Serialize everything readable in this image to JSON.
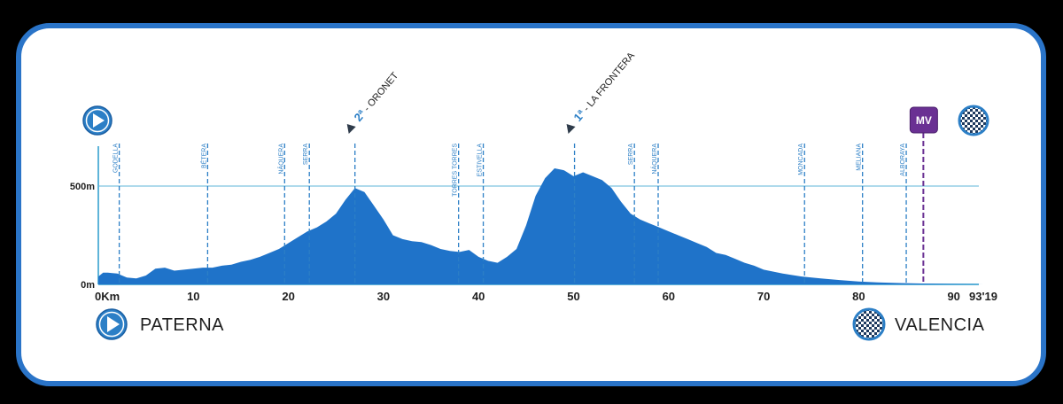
{
  "chart_data": {
    "type": "area",
    "title": "",
    "xlabel": "",
    "ylabel": "",
    "xlim": [
      0,
      93.19
    ],
    "ylim": [
      0,
      650
    ],
    "x_ticks": [
      {
        "value": 0,
        "label": "0Km"
      },
      {
        "value": 10,
        "label": "10"
      },
      {
        "value": 20,
        "label": "20"
      },
      {
        "value": 30,
        "label": "30"
      },
      {
        "value": 40,
        "label": "40"
      },
      {
        "value": 50,
        "label": "50"
      },
      {
        "value": 60,
        "label": "60"
      },
      {
        "value": 70,
        "label": "70"
      },
      {
        "value": 80,
        "label": "80"
      },
      {
        "value": 90,
        "label": "90"
      },
      {
        "value": 93.19,
        "label": "93'19"
      }
    ],
    "y_ticks": [
      {
        "value": 0,
        "label": "0m"
      },
      {
        "value": 500,
        "label": "500m"
      }
    ],
    "profile": {
      "x": [
        0,
        0.5,
        1,
        2,
        3,
        4,
        5,
        6,
        7,
        8,
        9,
        10,
        11,
        12,
        13,
        14,
        15,
        16,
        17,
        18,
        19,
        20,
        21,
        22,
        23,
        24,
        25,
        26,
        27,
        28,
        29,
        30,
        31,
        32,
        33,
        34,
        35,
        36,
        37,
        38,
        39,
        40,
        41,
        42,
        43,
        44,
        45,
        46,
        47,
        48,
        49,
        50,
        51,
        52,
        53,
        54,
        55,
        56,
        57,
        58,
        59,
        60,
        61,
        62,
        63,
        64,
        65,
        66,
        67,
        68,
        69,
        70,
        72,
        74,
        76,
        78,
        80,
        82,
        84,
        86,
        88,
        90,
        93.19
      ],
      "y": [
        40,
        60,
        60,
        55,
        35,
        30,
        45,
        80,
        85,
        70,
        75,
        80,
        85,
        85,
        95,
        100,
        115,
        125,
        140,
        160,
        180,
        210,
        240,
        270,
        290,
        320,
        360,
        430,
        490,
        470,
        400,
        330,
        250,
        230,
        220,
        215,
        200,
        180,
        170,
        165,
        175,
        140,
        120,
        110,
        140,
        180,
        300,
        450,
        540,
        590,
        580,
        550,
        570,
        550,
        530,
        490,
        420,
        360,
        330,
        310,
        290,
        270,
        250,
        230,
        210,
        190,
        160,
        150,
        130,
        110,
        95,
        75,
        55,
        40,
        30,
        22,
        15,
        10,
        7,
        5,
        3,
        2,
        0
      ]
    },
    "towns": [
      {
        "name": "GODELLA",
        "km": 2.2
      },
      {
        "name": "BÉTERA",
        "km": 11.5
      },
      {
        "name": "NÁQUERA",
        "km": 19.6
      },
      {
        "name": "SERRA",
        "km": 22.2
      },
      {
        "name": "TORRES TORRES",
        "km": 37.9
      },
      {
        "name": "ESTIVELLA",
        "km": 40.5
      },
      {
        "name": "SERRA",
        "km": 56.4
      },
      {
        "name": "NÁQUERA",
        "km": 58.9
      },
      {
        "name": "MONCADA",
        "km": 74.3
      },
      {
        "name": "MELIANA",
        "km": 80.4
      },
      {
        "name": "ALBORAYA",
        "km": 85.0
      }
    ],
    "climbs": [
      {
        "category": "2ª",
        "name": " - ORONET",
        "km": 27.0
      },
      {
        "category": "1ª",
        "name": " - LA FRONTERA",
        "km": 50.1
      }
    ],
    "sprint": {
      "label": "MV",
      "km": 86.8,
      "color": "#6a3093"
    },
    "start": {
      "name": "PATERNA"
    },
    "finish": {
      "name": "VALENCIA"
    },
    "colors": {
      "fill": "#1f73c9",
      "line": "#5fb4d9",
      "marker": "#2c7fc6",
      "frame": "#2a74c8"
    },
    "grid": false,
    "legend": "none"
  }
}
